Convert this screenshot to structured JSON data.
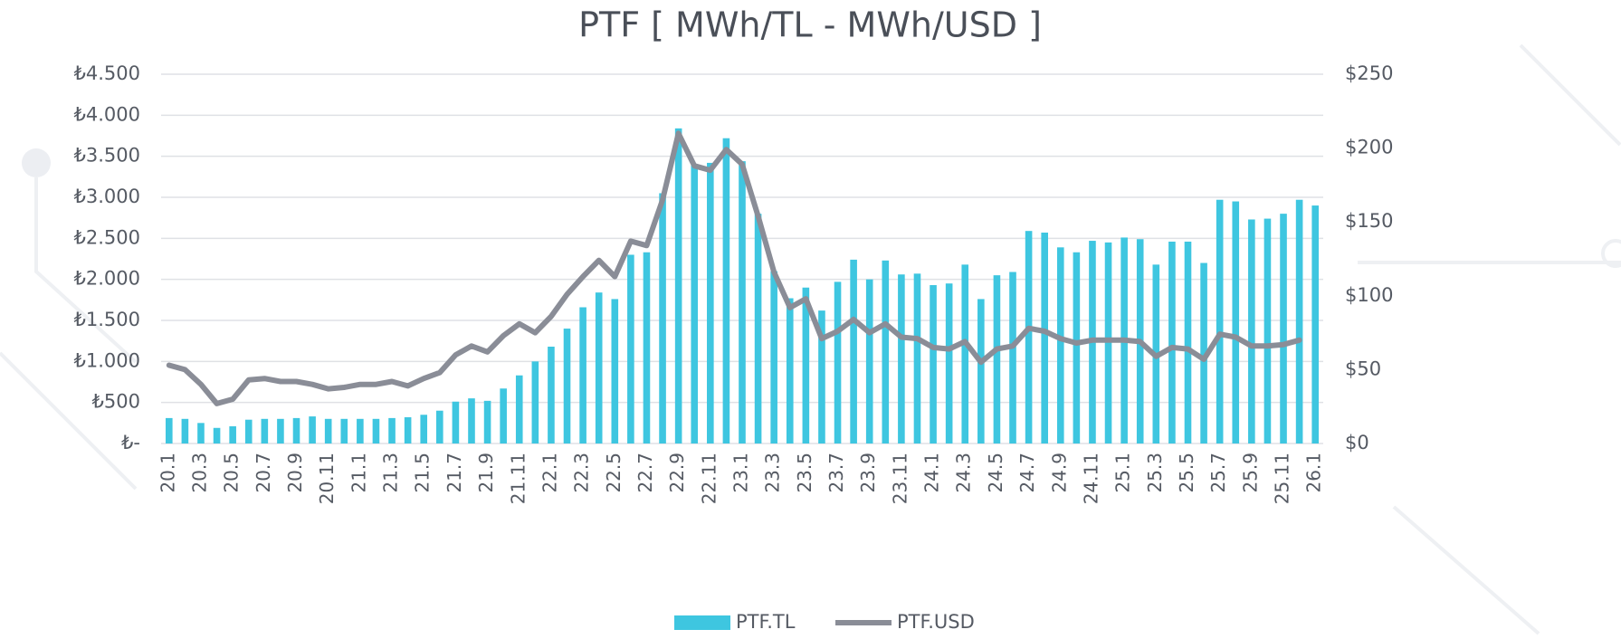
{
  "chart_data": {
    "type": "bar",
    "title": "PTF  [ MWh/TL - MWh/USD ]",
    "categories": [
      "20.1",
      null,
      "20.3",
      null,
      "20.5",
      null,
      "20.7",
      null,
      "20.9",
      null,
      "20.11",
      null,
      "21.1",
      null,
      "21.3",
      null,
      "21.5",
      null,
      "21.7",
      null,
      "21.9",
      null,
      "21.11",
      null,
      "22.1",
      null,
      "22.3",
      null,
      "22.5",
      null,
      "22.7",
      null,
      "22.9",
      null,
      "22.11",
      null,
      "23.1",
      null,
      "23.3",
      null,
      "23.5",
      null,
      "23.7",
      null,
      "23.9",
      null,
      "23.11",
      null,
      "24.1",
      null,
      "24.3",
      null,
      "24.5",
      null,
      "24.7",
      null,
      "24.9",
      null,
      "24.11",
      null,
      "25.1",
      null,
      "25.3",
      null,
      "25.5",
      null,
      "25.7",
      null,
      "25.9",
      null,
      "25.11",
      null,
      "26.1"
    ],
    "series": [
      {
        "name": "PTF.TL",
        "type": "bar",
        "color": "#3ec6e0",
        "axis": "y",
        "values": [
          310,
          300,
          250,
          190,
          210,
          290,
          300,
          300,
          310,
          330,
          300,
          300,
          300,
          300,
          310,
          320,
          350,
          400,
          510,
          550,
          520,
          670,
          830,
          1000,
          1180,
          1400,
          1660,
          1840,
          1760,
          2300,
          2330,
          3050,
          3840,
          3400,
          3420,
          3720,
          3440,
          2800,
          2100,
          1770,
          1900,
          1620,
          1970,
          2240,
          2000,
          2230,
          2060,
          2070,
          1930,
          1950,
          2180,
          1760,
          2050,
          2090,
          2590,
          2570,
          2390,
          2330,
          2470,
          2450,
          2510,
          2490,
          2180,
          2460,
          2460,
          2200,
          2970,
          2950,
          2730,
          2740,
          2800,
          2970,
          2900
        ]
      },
      {
        "name": "PTF.USD",
        "type": "line",
        "color": "#8a8d97",
        "axis": "y2",
        "values": [
          53,
          50,
          40,
          27,
          30,
          43,
          44,
          42,
          42,
          40,
          37,
          38,
          40,
          40,
          42,
          39,
          44,
          48,
          60,
          66,
          62,
          73,
          81,
          75,
          86,
          101,
          113,
          124,
          113,
          137,
          134,
          165,
          210,
          188,
          185,
          199,
          189,
          154,
          116,
          92,
          98,
          71,
          76,
          84,
          75,
          81,
          72,
          71,
          65,
          64,
          69,
          55,
          64,
          66,
          78,
          76,
          71,
          68,
          70,
          70,
          70,
          69,
          59,
          65,
          64,
          57,
          74,
          72,
          66,
          66,
          67,
          70,
          null
        ]
      }
    ],
    "ylim": [
      0,
      4500
    ],
    "yticks": [
      {
        "value": 0,
        "label": "₺-"
      },
      {
        "value": 500,
        "label": "₺500"
      },
      {
        "value": 1000,
        "label": "₺1.000"
      },
      {
        "value": 1500,
        "label": "₺1.500"
      },
      {
        "value": 2000,
        "label": "₺2.000"
      },
      {
        "value": 2500,
        "label": "₺2.500"
      },
      {
        "value": 3000,
        "label": "₺3.000"
      },
      {
        "value": 3500,
        "label": "₺3.500"
      },
      {
        "value": 4000,
        "label": "₺4.000"
      },
      {
        "value": 4500,
        "label": "₺4.500"
      }
    ],
    "y2lim": [
      0,
      250
    ],
    "y2ticks": [
      {
        "value": 0,
        "label": "$0"
      },
      {
        "value": 50,
        "label": "$50"
      },
      {
        "value": 100,
        "label": "$100"
      },
      {
        "value": 150,
        "label": "$150"
      },
      {
        "value": 200,
        "label": "$200"
      },
      {
        "value": 250,
        "label": "$250"
      }
    ],
    "grid": true,
    "legend": "bottom"
  }
}
